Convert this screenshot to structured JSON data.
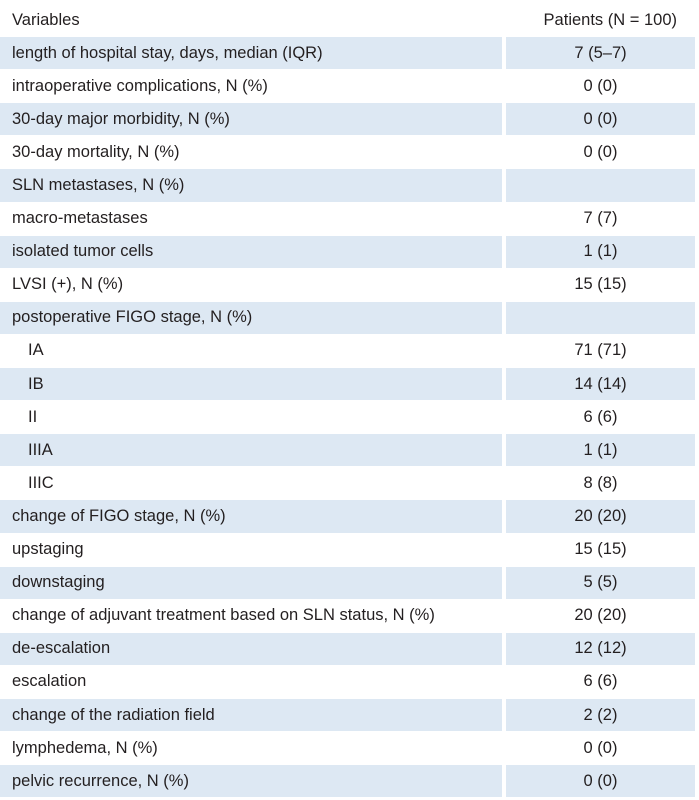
{
  "table": {
    "header": {
      "variables": "Variables",
      "patients": "Patients (N = 100)"
    },
    "rows": [
      {
        "label": "length of hospital stay, days, median (IQR)",
        "value": "7 (5–7)"
      },
      {
        "label": "intraoperative complications, N (%)",
        "value": "0 (0)"
      },
      {
        "label": "30-day major morbidity, N (%)",
        "value": "0 (0)"
      },
      {
        "label": "30-day mortality, N (%)",
        "value": "0 (0)"
      },
      {
        "label": "SLN metastases, N (%)",
        "value": ""
      },
      {
        "label": "macro-metastases",
        "value": "7 (7)"
      },
      {
        "label": "isolated tumor cells",
        "value": "1 (1)"
      },
      {
        "label": "LVSI (+), N (%)",
        "value": "15 (15)"
      },
      {
        "label": "postoperative FIGO stage, N (%)",
        "value": ""
      },
      {
        "label": "IA",
        "value": "71 (71)"
      },
      {
        "label": "IB",
        "value": "14 (14)"
      },
      {
        "label": "II",
        "value": "6 (6)"
      },
      {
        "label": "IIIA",
        "value": "1 (1)"
      },
      {
        "label": "IIIC",
        "value": "8 (8)"
      },
      {
        "label": "change of FIGO stage, N (%)",
        "value": "20 (20)"
      },
      {
        "label": "upstaging",
        "value": "15 (15)"
      },
      {
        "label": "downstaging",
        "value": "5 (5)"
      },
      {
        "label": "change of adjuvant treatment based on SLN status, N (%)",
        "value": "20 (20)"
      },
      {
        "label": "de-escalation",
        "value": "12 (12)"
      },
      {
        "label": "escalation",
        "value": "6 (6)"
      },
      {
        "label": "change of the radiation field",
        "value": "2 (2)"
      },
      {
        "label": "lymphedema, N (%)",
        "value": "0 (0)"
      },
      {
        "label": "pelvic recurrence, N (%)",
        "value": "0 (0)"
      }
    ]
  },
  "colors": {
    "row_shade": "#dde8f3",
    "text": "#231f20",
    "background": "#ffffff"
  }
}
